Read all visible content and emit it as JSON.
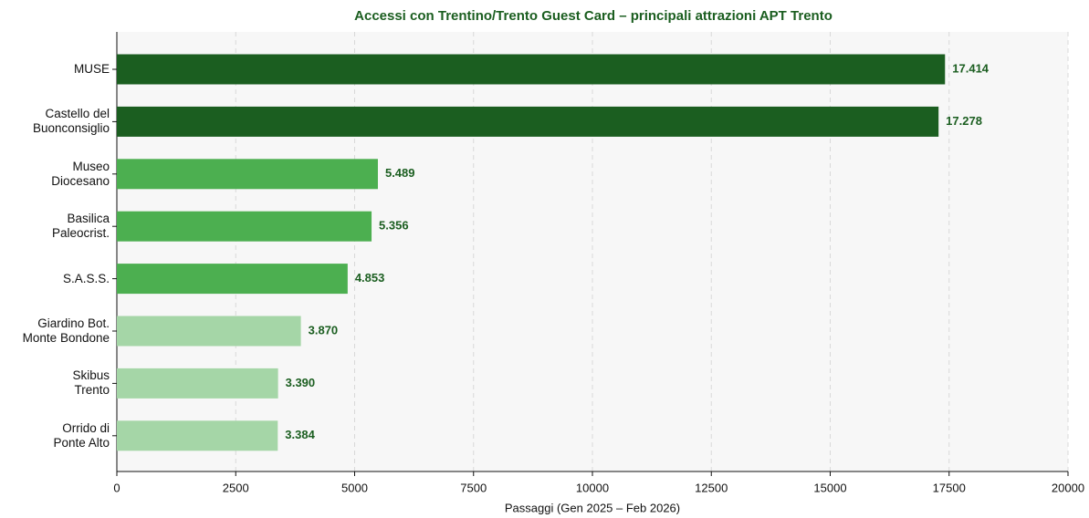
{
  "chart_data": {
    "type": "barh",
    "title": "Accessi con Trentino/Trento Guest Card – principali attrazioni APT Trento",
    "x_label": "Passaggi (Gen 2025 – Feb 2026)",
    "categories": [
      "MUSE",
      "Castello del\nBuonconsiglio",
      "Museo\nDiocesano",
      "Basilica\nPaleocrist.",
      "S.A.S.S.",
      "Giardino Bot.\nMonte Bondone",
      "Skibus\nTrento",
      "Orrido di\nPonte Alto"
    ],
    "values": [
      17414,
      17278,
      5489,
      5356,
      4853,
      3870,
      3390,
      3384
    ],
    "value_labels": [
      "17.414",
      "17.278",
      "5.489",
      "5.356",
      "4.853",
      "3.870",
      "3.390",
      "3.384"
    ],
    "colors": [
      "#1b5e20",
      "#1b5e20",
      "#4caf50",
      "#4caf50",
      "#4caf50",
      "#a5d6a7",
      "#a5d6a7",
      "#a5d6a7"
    ],
    "xlim": [
      0,
      20000
    ],
    "xticks": [
      0,
      2500,
      5000,
      7500,
      10000,
      12500,
      15000,
      17500,
      20000
    ],
    "grid": true
  }
}
